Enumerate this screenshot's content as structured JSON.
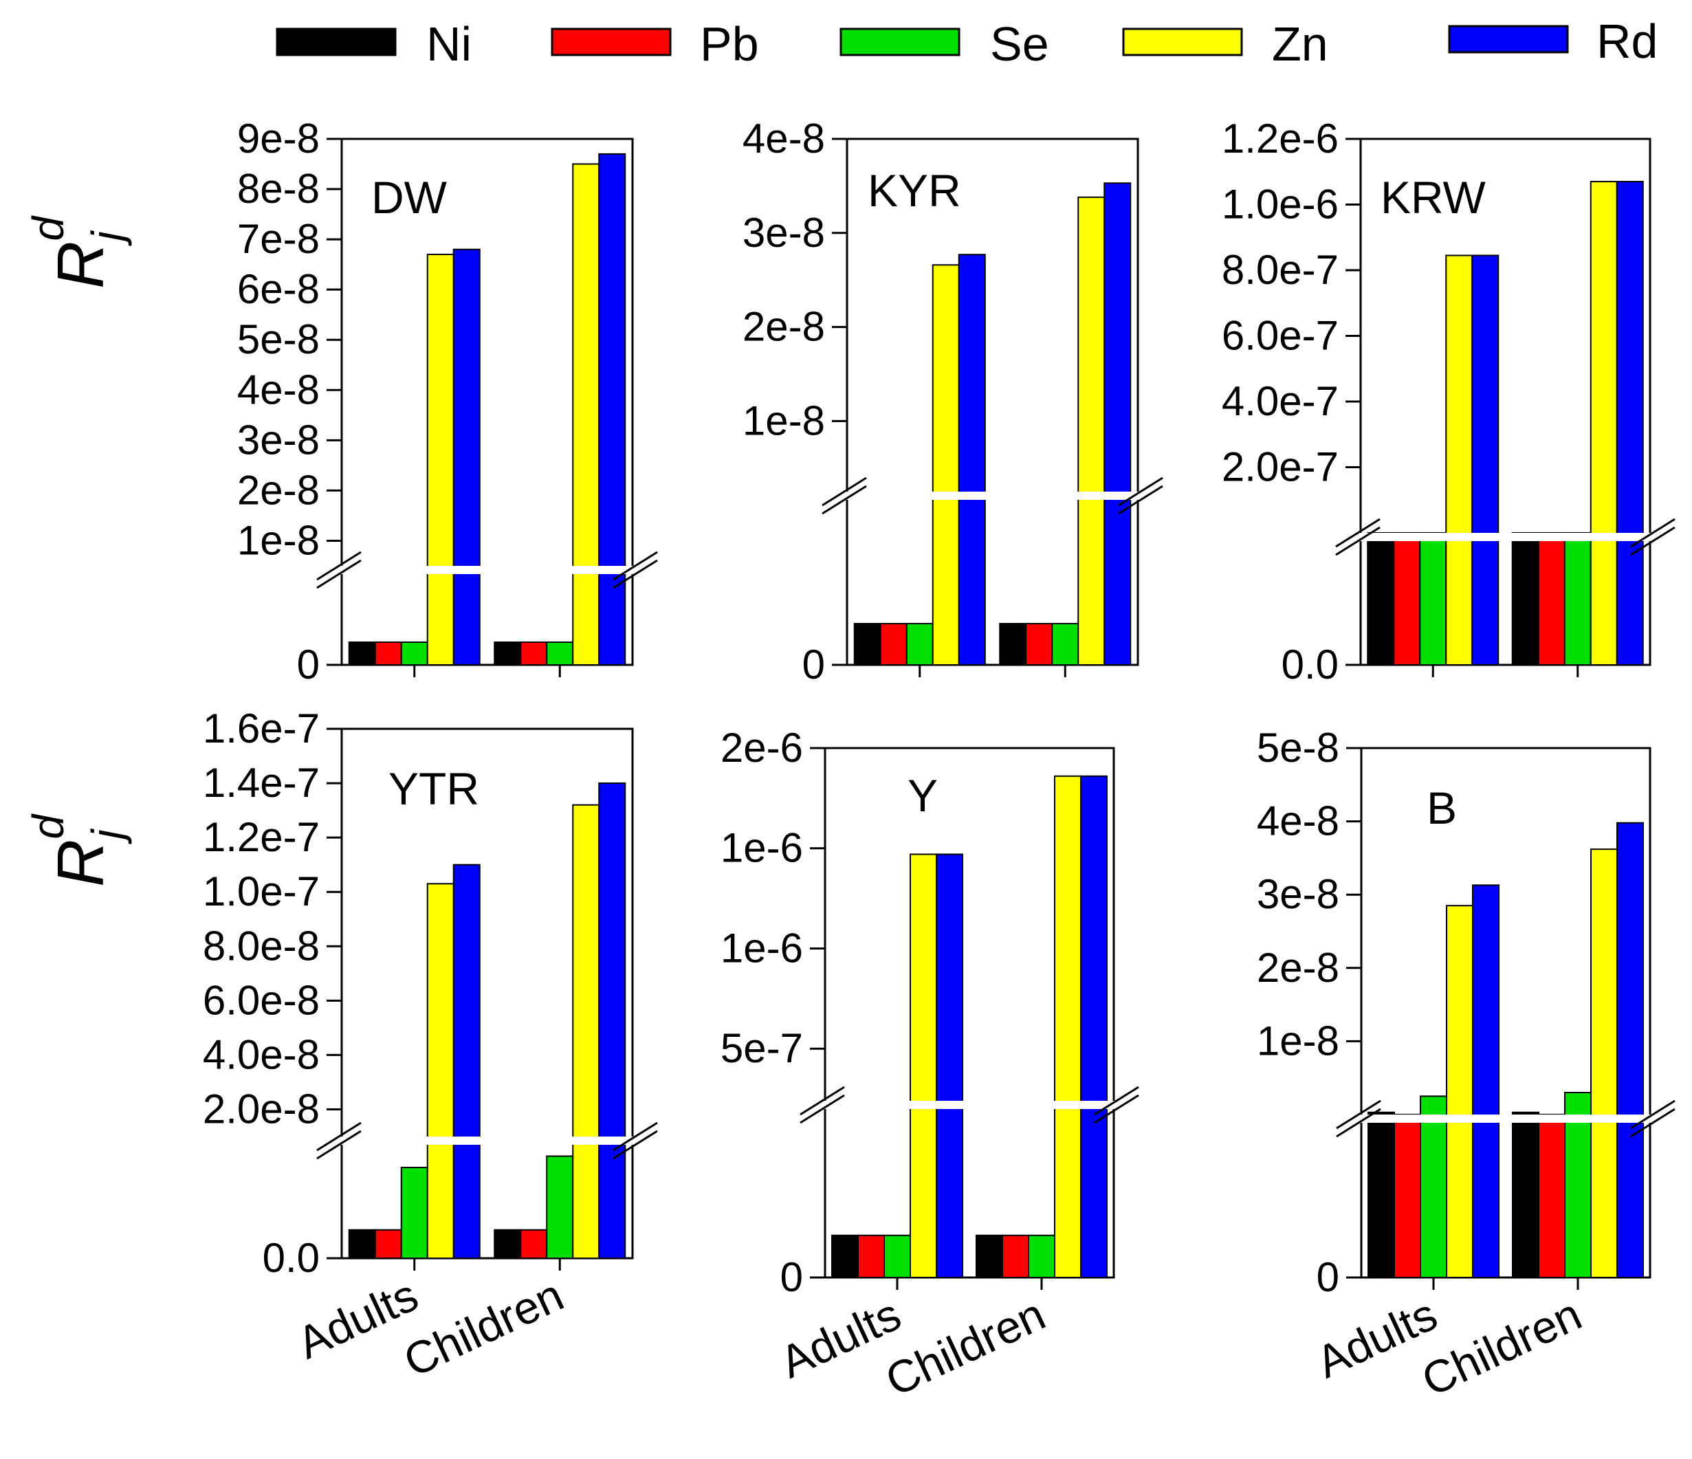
{
  "legend": [
    {
      "name": "Ni",
      "color": "#000000"
    },
    {
      "name": "Pb",
      "color": "#ff0000"
    },
    {
      "name": "Se",
      "color": "#00e000"
    },
    {
      "name": "Zn",
      "color": "#ffff00"
    },
    {
      "name": "Rd",
      "color": "#0000ff"
    }
  ],
  "ylabel": {
    "main": "R",
    "sub": "j",
    "sup": "d"
  },
  "chart_data": [
    {
      "type": "bar",
      "title": "DW",
      "categories": [
        "Adults",
        "Children"
      ],
      "broken_axis": true,
      "yticks": [
        "0",
        "1e-8",
        "2e-8",
        "3e-8",
        "4e-8",
        "5e-8",
        "6e-8",
        "7e-8",
        "8e-8",
        "9e-8"
      ],
      "series": [
        {
          "name": "Ni",
          "values": [
            1e-11,
            1e-11
          ]
        },
        {
          "name": "Pb",
          "values": [
            1e-11,
            1e-11
          ]
        },
        {
          "name": "Se",
          "values": [
            1e-09,
            1.1e-09
          ]
        },
        {
          "name": "Zn",
          "values": [
            6.7e-08,
            8.5e-08
          ]
        },
        {
          "name": "Rd",
          "values": [
            6.8e-08,
            8.7e-08
          ]
        }
      ]
    },
    {
      "type": "bar",
      "title": "KYR",
      "categories": [
        "Adults",
        "Children"
      ],
      "broken_axis": true,
      "yticks": [
        "0",
        "1e-8",
        "2e-8",
        "3e-8",
        "4e-8"
      ],
      "series": [
        {
          "name": "Ni",
          "values": [
            1e-11,
            1e-11
          ]
        },
        {
          "name": "Pb",
          "values": [
            1e-11,
            1e-11
          ]
        },
        {
          "name": "Se",
          "values": [
            5e-10,
            6e-10
          ]
        },
        {
          "name": "Zn",
          "values": [
            2.66e-08,
            3.38e-08
          ]
        },
        {
          "name": "Rd",
          "values": [
            2.77e-08,
            3.53e-08
          ]
        }
      ]
    },
    {
      "type": "bar",
      "title": "KRW",
      "categories": [
        "Adults",
        "Children"
      ],
      "broken_axis": true,
      "yticks": [
        "0.0",
        "2.0e-7",
        "4.0e-7",
        "6.0e-7",
        "8.0e-7",
        "1.0e-6",
        "1.2e-6"
      ],
      "series": [
        {
          "name": "Ni",
          "values": [
            1e-10,
            1e-10
          ]
        },
        {
          "name": "Pb",
          "values": [
            1e-10,
            1e-10
          ]
        },
        {
          "name": "Se",
          "values": [
            1e-10,
            1e-10
          ]
        },
        {
          "name": "Zn",
          "values": [
            8.45e-07,
            1.07e-06
          ]
        },
        {
          "name": "Rd",
          "values": [
            8.45e-07,
            1.07e-06
          ]
        }
      ]
    },
    {
      "type": "bar",
      "title": "YTR",
      "categories": [
        "Adults",
        "Children"
      ],
      "broken_axis": true,
      "yticks": [
        "0.0",
        "2.0e-8",
        "4.0e-8",
        "6.0e-8",
        "8.0e-8",
        "1.0e-7",
        "1.2e-7",
        "1.4e-7",
        "1.6e-7"
      ],
      "series": [
        {
          "name": "Ni",
          "values": [
            1e-11,
            1e-11
          ]
        },
        {
          "name": "Pb",
          "values": [
            3.2e-12,
            4.1e-12
          ]
        },
        {
          "name": "Se",
          "values": [
            8e-09,
            9e-09
          ]
        },
        {
          "name": "Zn",
          "values": [
            1.03e-07,
            1.32e-07
          ]
        },
        {
          "name": "Rd",
          "values": [
            1.1e-07,
            1.4e-07
          ]
        }
      ]
    },
    {
      "type": "bar",
      "title": "Y",
      "categories": [
        "Adults",
        "Children"
      ],
      "broken_axis": true,
      "yticks": [
        "0",
        "5e-7",
        "1e-6",
        "1e-6",
        "2e-6"
      ],
      "series": [
        {
          "name": "Ni",
          "values": [
            1e-10,
            1e-10
          ]
        },
        {
          "name": "Pb",
          "values": [
            1.6e-11,
            2.1e-11
          ]
        },
        {
          "name": "Se",
          "values": [
            1e-10,
            1e-10
          ]
        },
        {
          "name": "Zn",
          "values": [
            1.47e-06,
            1.86e-06
          ]
        },
        {
          "name": "Rd",
          "values": [
            1.47e-06,
            1.86e-06
          ]
        }
      ]
    },
    {
      "type": "bar",
      "title": "B",
      "categories": [
        "Adults",
        "Children"
      ],
      "broken_axis": true,
      "yticks": [
        "0",
        "1e-8",
        "2e-8",
        "3e-8",
        "4e-8",
        "5e-8"
      ],
      "series": [
        {
          "name": "Ni",
          "values": [
            3e-10,
            3e-10
          ]
        },
        {
          "name": "Pb",
          "values": [
            1e-11,
            1e-11
          ]
        },
        {
          "name": "Se",
          "values": [
            2.5e-09,
            3e-09
          ]
        },
        {
          "name": "Zn",
          "values": [
            2.85e-08,
            3.62e-08
          ]
        },
        {
          "name": "Rd",
          "values": [
            3.13e-08,
            3.98e-08
          ]
        }
      ]
    }
  ]
}
